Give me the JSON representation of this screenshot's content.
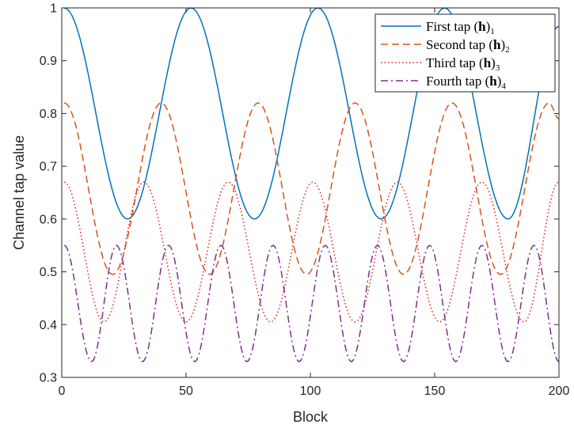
{
  "chart_data": {
    "type": "line",
    "title": "",
    "xlabel": "Block",
    "ylabel": "Channel tap value",
    "xlim": [
      0,
      200
    ],
    "ylim": [
      0.3,
      1.0
    ],
    "xticks": [
      0,
      50,
      100,
      150,
      200
    ],
    "yticks": [
      0.3,
      0.4,
      0.5,
      0.6,
      0.7,
      0.8,
      0.9,
      1.0
    ],
    "xtick_labels": [
      "0",
      "50",
      "100",
      "150",
      "200"
    ],
    "ytick_labels": [
      "0.3",
      "0.4",
      "0.5",
      "0.6",
      "0.7",
      "0.8",
      "0.9",
      "1"
    ],
    "grid": false,
    "legend_position": "top-right",
    "series": [
      {
        "name": "First tap (h)1",
        "label_main": "First tap (",
        "label_bold": "h",
        "label_close": ")",
        "label_sub": "1",
        "color": "#0072BD",
        "dash": "solid",
        "x": [
          1,
          26.5,
          52,
          77.5,
          103,
          128.5,
          154,
          179.5,
          200
        ],
        "y": [
          1.0,
          0.6,
          1.0,
          0.6,
          1.0,
          0.6,
          1.0,
          0.6,
          0.965
        ]
      },
      {
        "name": "Second tap (h)2",
        "label_main": "Second tap (",
        "label_bold": "h",
        "label_close": ")",
        "label_sub": "2",
        "color": "#D95319",
        "dash": "dashed",
        "x": [
          1,
          20.5,
          40,
          59.5,
          79,
          98.5,
          118,
          137.5,
          157,
          176.5,
          196,
          200
        ],
        "y": [
          0.82,
          0.495,
          0.82,
          0.495,
          0.82,
          0.495,
          0.82,
          0.495,
          0.82,
          0.495,
          0.82,
          0.79
        ]
      },
      {
        "name": "Third tap (h)3",
        "label_main": "Third tap (",
        "label_bold": "h",
        "label_close": ")",
        "label_sub": "3",
        "color": "#ED1C24",
        "dash": "dotted",
        "x": [
          1,
          17,
          33,
          50,
          67,
          84,
          101,
          118,
          135,
          152,
          169,
          186,
          200
        ],
        "y": [
          0.67,
          0.405,
          0.67,
          0.405,
          0.67,
          0.405,
          0.67,
          0.405,
          0.67,
          0.405,
          0.67,
          0.405,
          0.67
        ]
      },
      {
        "name": "Fourth tap (h)4",
        "label_main": "Fourth tap (",
        "label_bold": "h",
        "label_close": ")",
        "label_sub": "4",
        "color": "#7E2F8E",
        "dash": "dashdot",
        "x": [
          1,
          12,
          22,
          32.5,
          43,
          53.5,
          64,
          74.5,
          85,
          95.5,
          106,
          116.5,
          127,
          137.5,
          148,
          158.5,
          169,
          179.5,
          190,
          200
        ],
        "y": [
          0.55,
          0.33,
          0.55,
          0.33,
          0.55,
          0.33,
          0.55,
          0.33,
          0.55,
          0.33,
          0.55,
          0.33,
          0.55,
          0.33,
          0.55,
          0.33,
          0.55,
          0.33,
          0.55,
          0.33
        ]
      }
    ]
  }
}
